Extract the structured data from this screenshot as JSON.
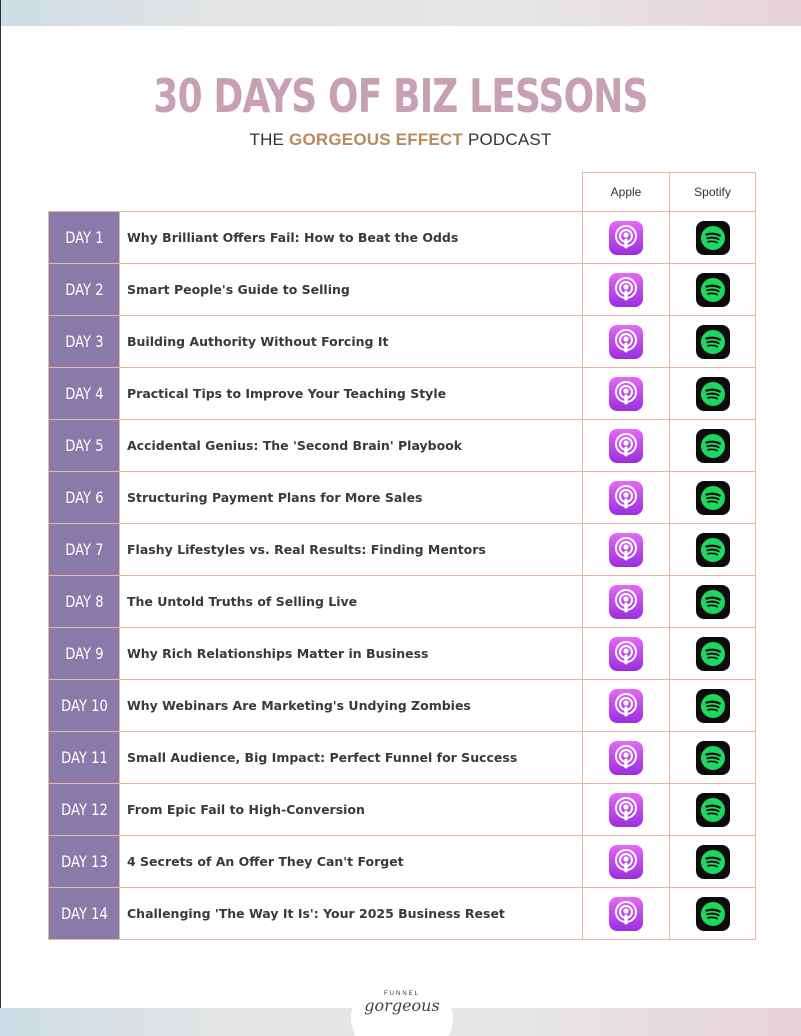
{
  "header": {
    "title": "30 DAYS OF BIZ LESSONS",
    "subtitle_prefix": "THE",
    "subtitle_accent": "GORGEOUS EFFECT",
    "subtitle_suffix": "PODCAST"
  },
  "table": {
    "columns": [
      "Apple",
      "Spotify"
    ],
    "rows": [
      {
        "day": "DAY 1",
        "title": "Why Brilliant Offers Fail: How to Beat the Odds"
      },
      {
        "day": "DAY 2",
        "title": "Smart People's Guide to Selling"
      },
      {
        "day": "DAY 3",
        "title": "Building Authority Without Forcing It"
      },
      {
        "day": "DAY 4",
        "title": "Practical Tips to Improve Your Teaching Style"
      },
      {
        "day": "DAY 5",
        "title": "Accidental Genius: The 'Second Brain' Playbook"
      },
      {
        "day": "DAY 6",
        "title": "Structuring Payment Plans for More Sales"
      },
      {
        "day": "DAY 7",
        "title": "Flashy Lifestyles vs. Real Results: Finding Mentors"
      },
      {
        "day": "DAY 8",
        "title": "The Untold Truths of Selling Live"
      },
      {
        "day": "DAY 9",
        "title": "Why Rich Relationships Matter in Business"
      },
      {
        "day": "DAY 10",
        "title": "Why Webinars Are Marketing's Undying Zombies"
      },
      {
        "day": "DAY 11",
        "title": "Small Audience, Big Impact: Perfect Funnel for Success"
      },
      {
        "day": "DAY 12",
        "title": "From Epic Fail to High-Conversion"
      },
      {
        "day": "DAY 13",
        "title": "4 Secrets of An Offer They Can't Forget"
      },
      {
        "day": "DAY 14",
        "title": "Challenging 'The Way It Is': Your 2025 Business Reset"
      }
    ]
  },
  "icons": {
    "apple": "apple-podcasts-icon",
    "spotify": "spotify-icon"
  },
  "footer": {
    "logo_small": "FUNNEL",
    "logo_script": "gorgeous"
  },
  "colors": {
    "title": "#c8a0b3",
    "accent": "#b98a5e",
    "day_cell": "#8a7aaa",
    "border": "#e3b99f"
  }
}
